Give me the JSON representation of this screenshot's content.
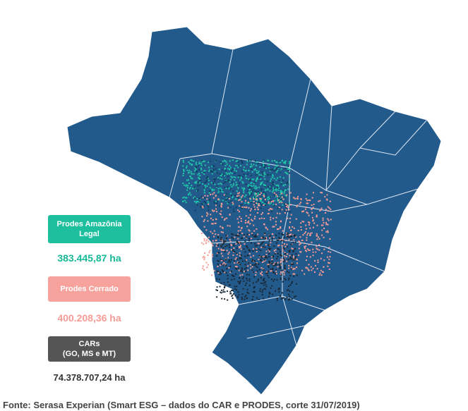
{
  "legend": [
    {
      "label": "Prodes Amazônia\nLegal",
      "value": "383.445,87 ha"
    },
    {
      "label": "Prodes Cerrado",
      "value": "400.208,36 ha"
    },
    {
      "label": "CARs\n(GO, MS e MT)",
      "value": "74.378.707,24 ha"
    }
  ],
  "source": "Fonte: Serasa Experian (Smart ESG – dados do CAR e PRODES, corte 31/07/2019)"
}
